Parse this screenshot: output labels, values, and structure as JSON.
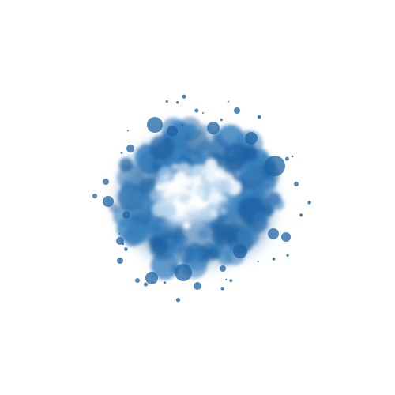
{
  "canvas": {
    "background": "#ffffff"
  },
  "artwork": {
    "subject": "bokeh-particle-cloud",
    "colors": {
      "outer": "#1e63a3",
      "mid": "#3a82bf",
      "light": "#b9d6ee",
      "core": "#ffffff"
    }
  }
}
